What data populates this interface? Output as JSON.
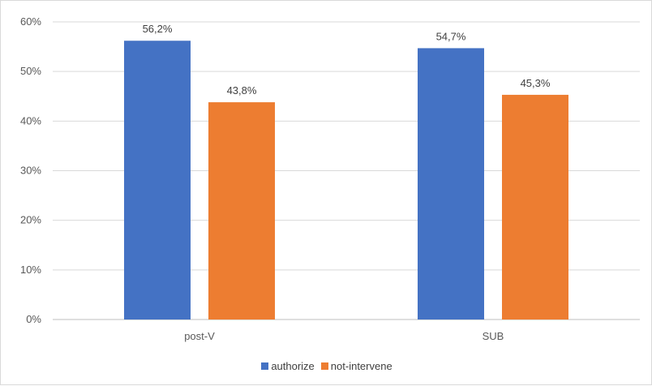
{
  "chart_data": {
    "type": "bar",
    "categories": [
      "post-V",
      "SUB"
    ],
    "series": [
      {
        "name": "authorize",
        "values": [
          56.2,
          54.7
        ],
        "labels": [
          "56,2%",
          "54,7%"
        ],
        "color": "#4472C4"
      },
      {
        "name": "not-intervene",
        "values": [
          43.8,
          45.3
        ],
        "labels": [
          "43,8%",
          "45,3%"
        ],
        "color": "#ED7D31"
      }
    ],
    "y_ticks": [
      "0%",
      "10%",
      "20%",
      "30%",
      "40%",
      "50%",
      "60%"
    ],
    "ylim": [
      0,
      60
    ],
    "grid": true,
    "legend_position": "bottom",
    "title": "",
    "xlabel": "",
    "ylabel": ""
  }
}
